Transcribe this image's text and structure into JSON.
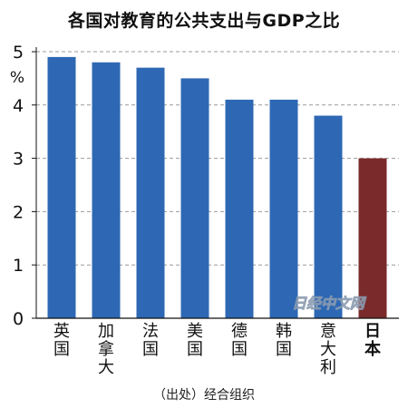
{
  "chart_data": {
    "type": "bar",
    "title": "各国对教育的公共支出与GDP之比",
    "ylabel": "%",
    "ylim": [
      0,
      5
    ],
    "yticks": [
      0,
      1,
      2,
      3,
      4,
      5
    ],
    "grid": true,
    "categories": [
      "英国",
      "加拿大",
      "法国",
      "美国",
      "德国",
      "韩国",
      "意大利",
      "日本"
    ],
    "values": [
      4.9,
      4.8,
      4.7,
      4.5,
      4.1,
      4.1,
      3.8,
      3.0
    ],
    "colors": {
      "default": "#2e68b4",
      "highlight": "#7a2a2a",
      "grid": "#999999"
    },
    "highlight_category": "日本",
    "source": "（出处）经合组织",
    "watermark": "日经中文网"
  }
}
